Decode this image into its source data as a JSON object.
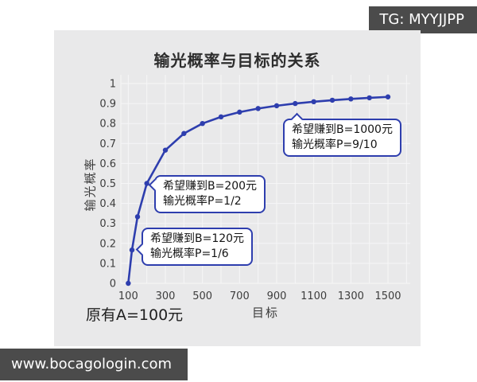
{
  "watermarks": {
    "telegram": "TG: MYYJJPP",
    "website": "www.bocagologin.com"
  },
  "colors": {
    "line": "#2e3eae",
    "annotation_border": "#2e3eae",
    "panel_bg": "#e9e9ea",
    "badge_bg": "#4b4b4b",
    "badge_text": "#ffffff"
  },
  "chart_data": {
    "type": "line",
    "title": "输光概率与目标的关系",
    "xlabel": "目标",
    "ylabel": "输光概率",
    "caption": "原有A=100元",
    "grid": true,
    "legend": "none",
    "xlim": [
      60,
      1620
    ],
    "ylim": [
      0,
      1.04
    ],
    "x": [
      100,
      120,
      150,
      200,
      300,
      400,
      500,
      600,
      700,
      800,
      900,
      1000,
      1100,
      1200,
      1300,
      1400,
      1500
    ],
    "y": [
      0,
      0.1667,
      0.3333,
      0.5,
      0.6667,
      0.75,
      0.8,
      0.8333,
      0.8571,
      0.875,
      0.8889,
      0.9,
      0.9091,
      0.9167,
      0.9231,
      0.9286,
      0.9333
    ],
    "x_ticks": [
      "100",
      "300",
      "500",
      "700",
      "900",
      "1100",
      "1300",
      "1500"
    ],
    "y_ticks": [
      "0",
      "0.1",
      "0.2",
      "0.3",
      "0.4",
      "0.5",
      "0.6",
      "0.7",
      "0.8",
      "0.9",
      "1"
    ],
    "annotations": [
      {
        "text_line1": "希望赚到B=200元",
        "text_line2": "输光概率P=1/2",
        "anchor_x": 200,
        "anchor_y": 0.5
      },
      {
        "text_line1": "希望赚到B=120元",
        "text_line2": "输光概率P=1/6",
        "anchor_x": 120,
        "anchor_y": 0.1667
      },
      {
        "text_line1": "希望赚到B=1000元",
        "text_line2": "输光概率P=9/10",
        "anchor_x": 1000,
        "anchor_y": 0.9
      }
    ]
  }
}
